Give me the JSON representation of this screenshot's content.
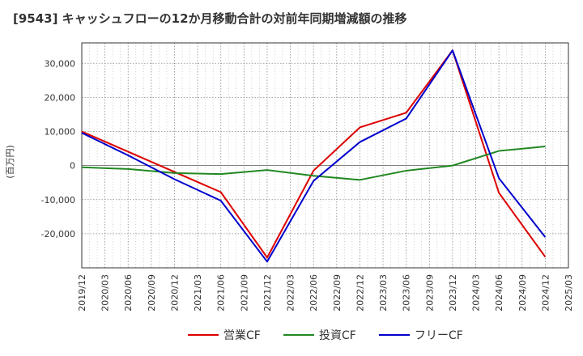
{
  "chart_data": {
    "type": "line",
    "title": "[9543]  キャッシュフローの12か月移動合計の対前年同期増減額の推移",
    "ylabel": "(百万円)",
    "xlabel": "",
    "ylim": [
      -30000,
      36000
    ],
    "yticks": [
      30000,
      20000,
      10000,
      0,
      -10000,
      -20000
    ],
    "ytick_labels": [
      "30,000",
      "20,000",
      "10,000",
      "0",
      "-10,000",
      "-20,000"
    ],
    "xlim": [
      "2019/12",
      "2025/03"
    ],
    "x": [
      "2019/12",
      "2020/03",
      "2020/06",
      "2020/09",
      "2020/12",
      "2021/03",
      "2021/06",
      "2021/09",
      "2021/12",
      "2022/03",
      "2022/06",
      "2022/09",
      "2022/12",
      "2023/03",
      "2023/06",
      "2023/09",
      "2023/12",
      "2024/03",
      "2024/06",
      "2024/09",
      "2024/12",
      "2025/03"
    ],
    "grid": true,
    "legend_position": "bottom",
    "series": [
      {
        "name": "営業CF",
        "color": "#dd0000",
        "points": [
          [
            "2019/12",
            10000
          ],
          [
            "2021/06",
            -7800
          ],
          [
            "2021/12",
            -27000
          ],
          [
            "2022/06",
            -1500
          ],
          [
            "2022/12",
            11200
          ],
          [
            "2023/06",
            15500
          ],
          [
            "2023/12",
            33800
          ],
          [
            "2024/06",
            -8000
          ],
          [
            "2024/12",
            -26800
          ]
        ]
      },
      {
        "name": "投資CF",
        "color": "#228822",
        "points": [
          [
            "2019/12",
            -500
          ],
          [
            "2020/06",
            -1000
          ],
          [
            "2020/12",
            -2200
          ],
          [
            "2021/06",
            -2500
          ],
          [
            "2021/12",
            -1300
          ],
          [
            "2022/06",
            -3000
          ],
          [
            "2022/12",
            -4200
          ],
          [
            "2023/06",
            -1500
          ],
          [
            "2023/12",
            0
          ],
          [
            "2024/06",
            4300
          ],
          [
            "2024/12",
            5600
          ]
        ]
      },
      {
        "name": "フリーCF",
        "color": "#0000cc",
        "points": [
          [
            "2019/12",
            9600
          ],
          [
            "2020/06",
            3000
          ],
          [
            "2020/12",
            -4000
          ],
          [
            "2021/06",
            -10300
          ],
          [
            "2021/12",
            -28200
          ],
          [
            "2022/06",
            -4500
          ],
          [
            "2022/12",
            6900
          ],
          [
            "2023/06",
            13800
          ],
          [
            "2023/12",
            33800
          ],
          [
            "2024/06",
            -3700
          ],
          [
            "2024/12",
            -21000
          ]
        ]
      }
    ]
  }
}
